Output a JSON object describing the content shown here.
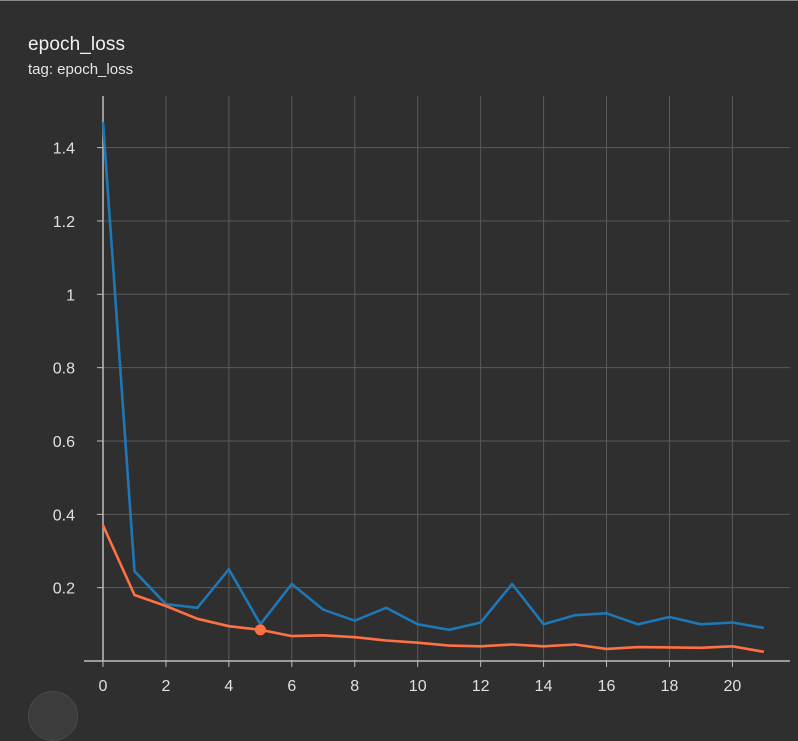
{
  "card": {
    "title": "epoch_loss",
    "tag_label": "tag: epoch_loss"
  },
  "colors": {
    "background": "#2f2f2f",
    "grid": "#5a5a5a",
    "axis": "#bdbdbd",
    "series_train": "#1f77b4",
    "series_validation": "#ff7043"
  },
  "chart_data": {
    "type": "line",
    "title": "epoch_loss",
    "xlabel": "",
    "ylabel": "",
    "xlim": [
      0,
      21
    ],
    "ylim": [
      0,
      1.5
    ],
    "grid": true,
    "x_ticks": [
      "0",
      "2",
      "4",
      "6",
      "8",
      "10",
      "12",
      "14",
      "16",
      "18",
      "20"
    ],
    "y_ticks": [
      "0.2",
      "0.4",
      "0.6",
      "0.8",
      "1",
      "1.2",
      "1.4"
    ],
    "x": [
      0,
      1,
      2,
      3,
      4,
      5,
      6,
      7,
      8,
      9,
      10,
      11,
      12,
      13,
      14,
      15,
      16,
      17,
      18,
      19,
      20,
      21
    ],
    "series": [
      {
        "color": "#1f77b4",
        "values": [
          1.47,
          0.245,
          0.155,
          0.145,
          0.25,
          0.1,
          0.21,
          0.14,
          0.11,
          0.145,
          0.1,
          0.085,
          0.105,
          0.21,
          0.1,
          0.125,
          0.13,
          0.1,
          0.12,
          0.1,
          0.105,
          0.09
        ]
      },
      {
        "color": "#ff7043",
        "values": [
          0.37,
          0.18,
          0.15,
          0.115,
          0.095,
          0.085,
          0.068,
          0.07,
          0.065,
          0.056,
          0.05,
          0.042,
          0.04,
          0.045,
          0.04,
          0.045,
          0.033,
          0.038,
          0.037,
          0.036,
          0.04,
          0.025
        ]
      }
    ],
    "highlight_point": {
      "series_index": 1,
      "x": 5,
      "y": 0.085
    }
  }
}
